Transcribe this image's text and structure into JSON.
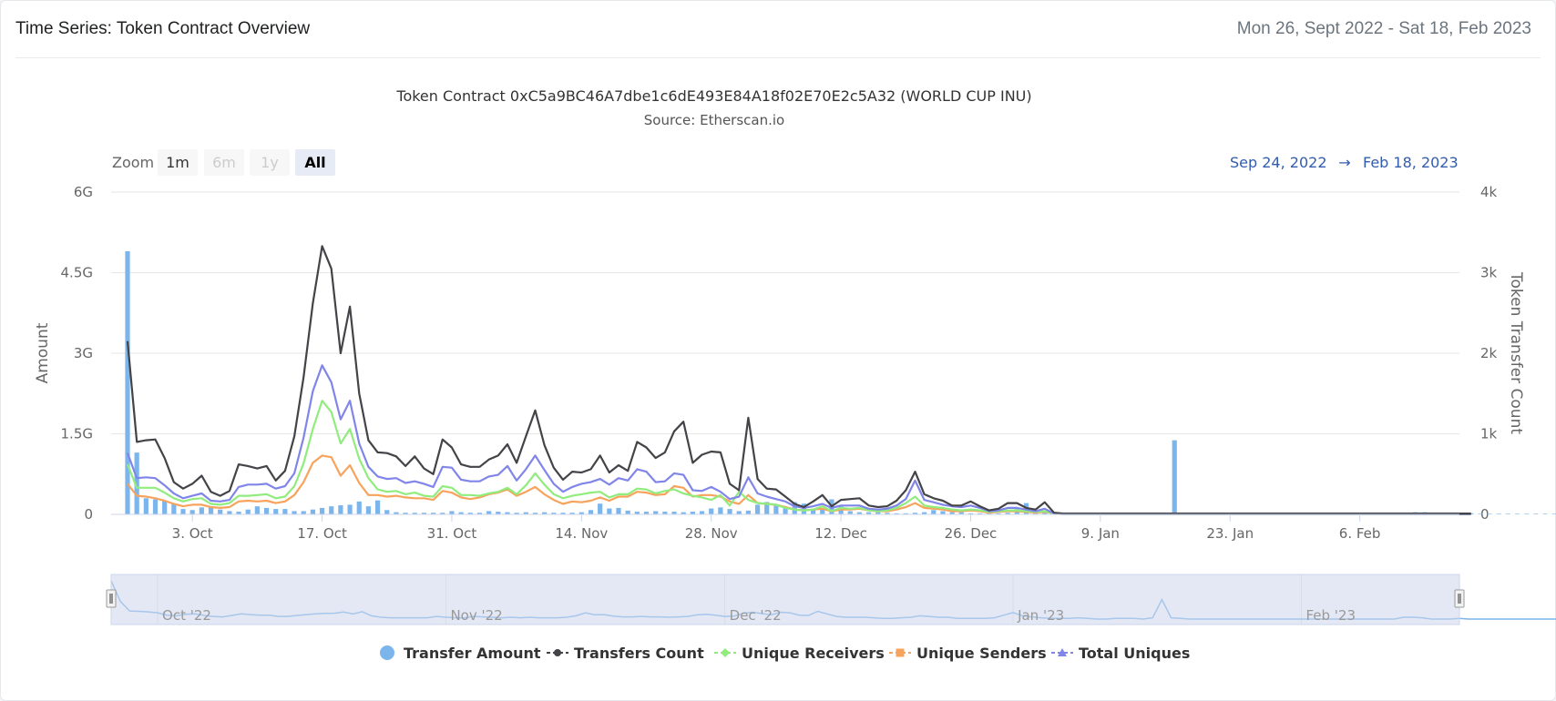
{
  "header": {
    "title": "Time Series: Token Contract Overview",
    "date_range": "Mon 26, Sept 2022 - Sat 18, Feb 2023"
  },
  "zoom": {
    "label": "Zoom",
    "buttons": [
      {
        "label": "1m",
        "state": "enabled"
      },
      {
        "label": "6m",
        "state": "disabled"
      },
      {
        "label": "1y",
        "state": "disabled"
      },
      {
        "label": "All",
        "state": "selected"
      }
    ]
  },
  "range_selector": {
    "from": "Sep 24, 2022",
    "arrow": "→",
    "to": "Feb 18, 2023"
  },
  "navigator": {
    "labels": [
      "Oct '22",
      "Nov '22",
      "Dec '22",
      "Jan '23",
      "Feb '23"
    ]
  },
  "colors": {
    "transfer_amount": "#7cb5ec",
    "transfers_count": "#434348",
    "unique_receivers": "#90ed7d",
    "unique_senders": "#f7a35c",
    "total_uniques": "#8085e9"
  },
  "chart_data": {
    "type": "line",
    "title": "Token Contract 0xC5a9BC46A7dbe1c6dE493E84A18f02E70E2c5A32 (WORLD CUP INU)",
    "subtitle": "Source: Etherscan.io",
    "x_start": "2022-09-26",
    "x_end": "2023-02-18",
    "x_ticks": [
      "3. Oct",
      "17. Oct",
      "31. Oct",
      "14. Nov",
      "28. Nov",
      "12. Dec",
      "26. Dec",
      "9. Jan",
      "23. Jan",
      "6. Feb"
    ],
    "y_left": {
      "label": "Amount",
      "min": 0,
      "max": 6000000000,
      "ticks": [
        "0",
        "1.5G",
        "3G",
        "4.5G",
        "6G"
      ]
    },
    "y_right": {
      "label": "Token Transfer Count",
      "min": 0,
      "max": 4000,
      "ticks": [
        "0",
        "1k",
        "2k",
        "3k",
        "4k"
      ]
    },
    "legend_position": "bottom-center",
    "series": [
      {
        "name": "Transfer Amount",
        "axis": "left",
        "kind": "column",
        "values": [
          4900000000,
          1150000000,
          300000000,
          280000000,
          250000000,
          200000000,
          100000000,
          80000000,
          130000000,
          150000000,
          90000000,
          60000000,
          50000000,
          90000000,
          150000000,
          120000000,
          100000000,
          100000000,
          60000000,
          60000000,
          90000000,
          120000000,
          150000000,
          170000000,
          180000000,
          240000000,
          150000000,
          260000000,
          80000000,
          40000000,
          30000000,
          30000000,
          30000000,
          30000000,
          30000000,
          60000000,
          40000000,
          30000000,
          30000000,
          60000000,
          50000000,
          40000000,
          30000000,
          40000000,
          30000000,
          40000000,
          30000000,
          30000000,
          30000000,
          40000000,
          80000000,
          200000000,
          110000000,
          120000000,
          70000000,
          50000000,
          50000000,
          60000000,
          50000000,
          50000000,
          40000000,
          50000000,
          60000000,
          110000000,
          130000000,
          100000000,
          60000000,
          70000000,
          180000000,
          230000000,
          160000000,
          110000000,
          230000000,
          200000000,
          100000000,
          90000000,
          280000000,
          150000000,
          60000000,
          40000000,
          40000000,
          40000000,
          30000000,
          20000000,
          20000000,
          30000000,
          40000000,
          80000000,
          60000000,
          40000000,
          40000000,
          20000000,
          20000000,
          20000000,
          20000000,
          30000000,
          100000000,
          210000000,
          80000000,
          50000000,
          30000000,
          20000000,
          20000000,
          20000000,
          30000000,
          20000000,
          10000000,
          10000000,
          20000000,
          20000000,
          20000000,
          10000000,
          30000000,
          1380000000,
          30000000,
          20000000,
          10000000,
          10000000,
          10000000,
          10000000,
          10000000,
          10000000,
          10000000,
          10000000,
          10000000,
          10000000,
          10000000,
          10000000,
          10000000,
          10000000,
          10000000,
          10000000,
          10000000,
          10000000,
          10000000,
          10000000,
          10000000,
          10000000,
          10000000,
          40000000,
          40000000,
          30000000,
          10000000,
          10000000,
          10000000,
          20000000,
          10000000,
          10000000,
          10000000,
          10000000,
          10000000,
          10000000,
          10000000,
          10000000,
          10000000,
          10000000,
          10000000,
          10000000,
          10000000,
          10000000,
          10000000,
          10000000
        ]
      },
      {
        "name": "Transfers Count",
        "axis": "right",
        "kind": "line",
        "values": [
          2150,
          900,
          920,
          930,
          700,
          400,
          320,
          380,
          480,
          280,
          230,
          290,
          620,
          600,
          570,
          600,
          420,
          540,
          970,
          1700,
          2620,
          3330,
          3050,
          2000,
          2580,
          1500,
          920,
          770,
          760,
          720,
          600,
          720,
          570,
          500,
          930,
          830,
          620,
          590,
          590,
          680,
          730,
          870,
          640,
          970,
          1290,
          860,
          580,
          430,
          530,
          520,
          560,
          730,
          520,
          610,
          540,
          900,
          830,
          700,
          770,
          1030,
          1150,
          640,
          740,
          780,
          770,
          380,
          300,
          1200,
          440,
          320,
          310,
          220,
          130,
          90,
          160,
          240,
          100,
          180,
          190,
          200,
          110,
          90,
          100,
          170,
          300,
          530,
          250,
          200,
          170,
          110,
          110,
          160,
          100,
          50,
          70,
          140,
          140,
          80,
          60,
          150,
          20,
          10,
          10,
          10,
          10,
          10,
          10,
          10,
          10,
          10,
          10,
          10,
          10,
          10,
          10,
          10,
          10,
          10,
          10,
          10,
          10,
          10,
          10,
          10,
          10,
          10,
          10,
          10,
          10,
          10,
          10,
          10,
          10,
          10,
          10,
          10,
          10,
          10,
          10,
          10,
          10,
          10,
          10,
          10,
          10,
          10
        ]
      },
      {
        "name": "Unique Receivers",
        "axis": "right",
        "kind": "line",
        "values": [
          620,
          330,
          330,
          330,
          270,
          200,
          160,
          190,
          200,
          130,
          120,
          140,
          230,
          230,
          240,
          250,
          200,
          220,
          350,
          630,
          1060,
          1410,
          1270,
          880,
          1060,
          690,
          450,
          310,
          280,
          290,
          250,
          270,
          230,
          220,
          350,
          330,
          240,
          240,
          230,
          260,
          280,
          330,
          250,
          360,
          510,
          370,
          250,
          200,
          230,
          250,
          270,
          280,
          210,
          250,
          250,
          320,
          310,
          260,
          290,
          310,
          260,
          230,
          210,
          180,
          240,
          110,
          280,
          180,
          140,
          130,
          120,
          80,
          60,
          50,
          60,
          100,
          40,
          80,
          70,
          80,
          50,
          40,
          50,
          80,
          140,
          220,
          110,
          90,
          80,
          60,
          50,
          60,
          50,
          30,
          40,
          50,
          50,
          40,
          30,
          40,
          10,
          5,
          5,
          5,
          5,
          5,
          5,
          5,
          5,
          5,
          5,
          5,
          5,
          5,
          5,
          5,
          5,
          5,
          5,
          5,
          5,
          5,
          5,
          5,
          5,
          5,
          5,
          5,
          5,
          5,
          5,
          5,
          5,
          5,
          5,
          5,
          5,
          5,
          5,
          5,
          5,
          5,
          5,
          5,
          5,
          5
        ]
      },
      {
        "name": "Unique Senders",
        "axis": "right",
        "kind": "line",
        "values": [
          380,
          230,
          220,
          200,
          170,
          130,
          100,
          120,
          120,
          90,
          80,
          90,
          160,
          170,
          160,
          170,
          140,
          160,
          240,
          400,
          640,
          730,
          710,
          480,
          610,
          390,
          240,
          240,
          220,
          230,
          210,
          200,
          200,
          180,
          290,
          270,
          210,
          190,
          210,
          250,
          270,
          310,
          230,
          280,
          340,
          250,
          180,
          130,
          160,
          150,
          170,
          210,
          170,
          220,
          220,
          280,
          270,
          240,
          250,
          350,
          330,
          220,
          240,
          240,
          220,
          160,
          130,
          240,
          140,
          130,
          120,
          90,
          60,
          50,
          60,
          70,
          40,
          60,
          60,
          70,
          50,
          40,
          40,
          60,
          90,
          140,
          80,
          70,
          60,
          40,
          40,
          50,
          40,
          20,
          30,
          40,
          40,
          30,
          20,
          30,
          10,
          5,
          5,
          5,
          5,
          5,
          5,
          5,
          5,
          5,
          5,
          5,
          5,
          5,
          5,
          5,
          5,
          5,
          5,
          5,
          5,
          5,
          5,
          5,
          5,
          5,
          5,
          5,
          5,
          5,
          5,
          5,
          5,
          5,
          5,
          5,
          5,
          5,
          5,
          5,
          5,
          5,
          5,
          5,
          5,
          5
        ]
      },
      {
        "name": "Total Uniques",
        "axis": "right",
        "kind": "line",
        "values": [
          760,
          450,
          460,
          450,
          360,
          260,
          200,
          230,
          260,
          170,
          160,
          180,
          340,
          370,
          370,
          380,
          320,
          350,
          510,
          950,
          1530,
          1850,
          1640,
          1180,
          1410,
          880,
          590,
          470,
          440,
          450,
          390,
          410,
          380,
          340,
          590,
          580,
          430,
          410,
          410,
          470,
          490,
          600,
          420,
          560,
          730,
          550,
          380,
          280,
          340,
          380,
          400,
          440,
          370,
          450,
          420,
          560,
          530,
          400,
          410,
          510,
          490,
          300,
          290,
          340,
          280,
          190,
          220,
          460,
          260,
          220,
          190,
          160,
          100,
          80,
          100,
          130,
          80,
          110,
          110,
          110,
          70,
          60,
          70,
          110,
          190,
          420,
          180,
          150,
          120,
          100,
          90,
          110,
          80,
          40,
          50,
          80,
          80,
          60,
          40,
          70,
          10,
          5,
          5,
          5,
          5,
          5,
          5,
          5,
          5,
          5,
          5,
          5,
          5,
          5,
          5,
          5,
          5,
          5,
          5,
          5,
          5,
          5,
          5,
          5,
          5,
          5,
          5,
          5,
          5,
          5,
          5,
          5,
          5,
          5,
          5,
          5,
          5,
          5,
          5,
          5,
          5,
          5,
          5,
          5,
          5,
          5
        ]
      }
    ]
  }
}
